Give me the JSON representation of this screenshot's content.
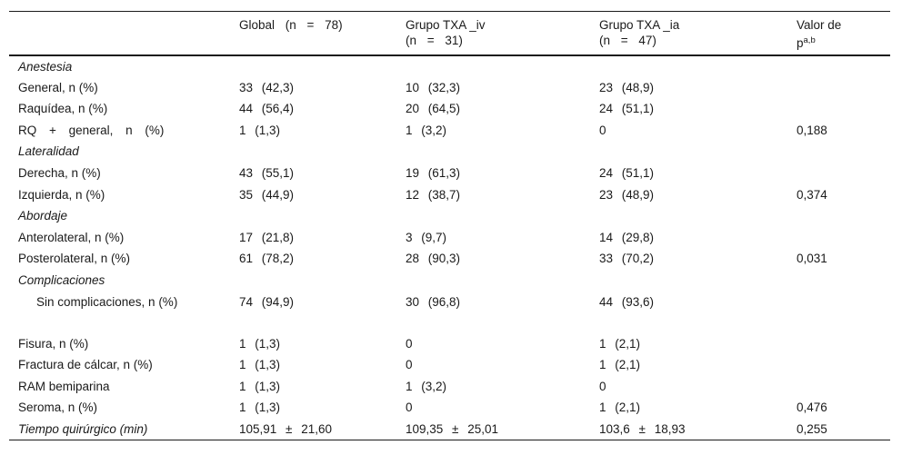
{
  "header": {
    "col1": "",
    "col2_line1": "Global (n = 78)",
    "col3_line1": "Grupo TXA _iv",
    "col3_line2": "(n = 31)",
    "col4_line1": "Grupo TXA _ia",
    "col4_line2": "(n = 47)",
    "col5_line1": "Valor de",
    "col5_p": "p",
    "col5_sup": "a,b"
  },
  "rows": [
    {
      "type": "group",
      "label": "Anestesia",
      "global": "",
      "iv": "",
      "ia": "",
      "p": ""
    },
    {
      "type": "sub",
      "label": "General, n (%)",
      "global": "33 (42,3)",
      "iv": "10 (32,3)",
      "ia": "23 (48,9)",
      "p": ""
    },
    {
      "type": "sub",
      "label": "Raquídea, n (%)",
      "global": "44 (56,4)",
      "iv": "20 (64,5)",
      "ia": "24 (51,1)",
      "p": ""
    },
    {
      "type": "sub",
      "label": "RQ + general, n (%)",
      "global": "1 (1,3)",
      "iv": "1 (3,2)",
      "ia": "0",
      "p": "0,188"
    },
    {
      "type": "group",
      "label": "Lateralidad",
      "global": "",
      "iv": "",
      "ia": "",
      "p": ""
    },
    {
      "type": "sub",
      "label": "Derecha, n (%)",
      "global": "43 (55,1)",
      "iv": "19 (61,3)",
      "ia": "24 (51,1)",
      "p": ""
    },
    {
      "type": "sub",
      "label": "Izquierda, n (%)",
      "global": "35 (44,9)",
      "iv": "12 (38,7)",
      "ia": "23 (48,9)",
      "p": "0,374"
    },
    {
      "type": "group",
      "label": "Abordaje",
      "global": "",
      "iv": "",
      "ia": "",
      "p": ""
    },
    {
      "type": "sub",
      "label": "Anterolateral, n (%)",
      "global": "17 (21,8)",
      "iv": "3 (9,7)",
      "ia": "14 (29,8)",
      "p": ""
    },
    {
      "type": "sub",
      "label": "Posterolateral, n (%)",
      "global": "61 (78,2)",
      "iv": "28 (90,3)",
      "ia": "33 (70,2)",
      "p": "0,031"
    },
    {
      "type": "group",
      "label": "Complicaciones",
      "global": "",
      "iv": "",
      "ia": "",
      "p": ""
    },
    {
      "type": "wrap",
      "label": "Sin complicaciones, n (%)",
      "global": "74 (94,9)",
      "iv": "30 (96,8)",
      "ia": "44 (93,6)",
      "p": ""
    },
    {
      "type": "sub",
      "label": "Fisura, n (%)",
      "global": "1 (1,3)",
      "iv": "0",
      "ia": "1 (2,1)",
      "p": ""
    },
    {
      "type": "sub",
      "label": "Fractura de cálcar, n (%)",
      "global": "1 (1,3)",
      "iv": "0",
      "ia": "1 (2,1)",
      "p": ""
    },
    {
      "type": "sub",
      "label": "RAM bemiparina",
      "global": "1 (1,3)",
      "iv": "1 (3,2)",
      "ia": "0",
      "p": ""
    },
    {
      "type": "sub",
      "label": "Seroma, n (%)",
      "global": "1 (1,3)",
      "iv": "0",
      "ia": "1 (2,1)",
      "p": "0,476"
    },
    {
      "type": "last",
      "label": "Tiempo quirúrgico (min)",
      "global": "105,91 ± 21,60",
      "iv": "109,35 ± 25,01",
      "ia": "103,6 ± 18,93",
      "p": "0,255"
    }
  ]
}
